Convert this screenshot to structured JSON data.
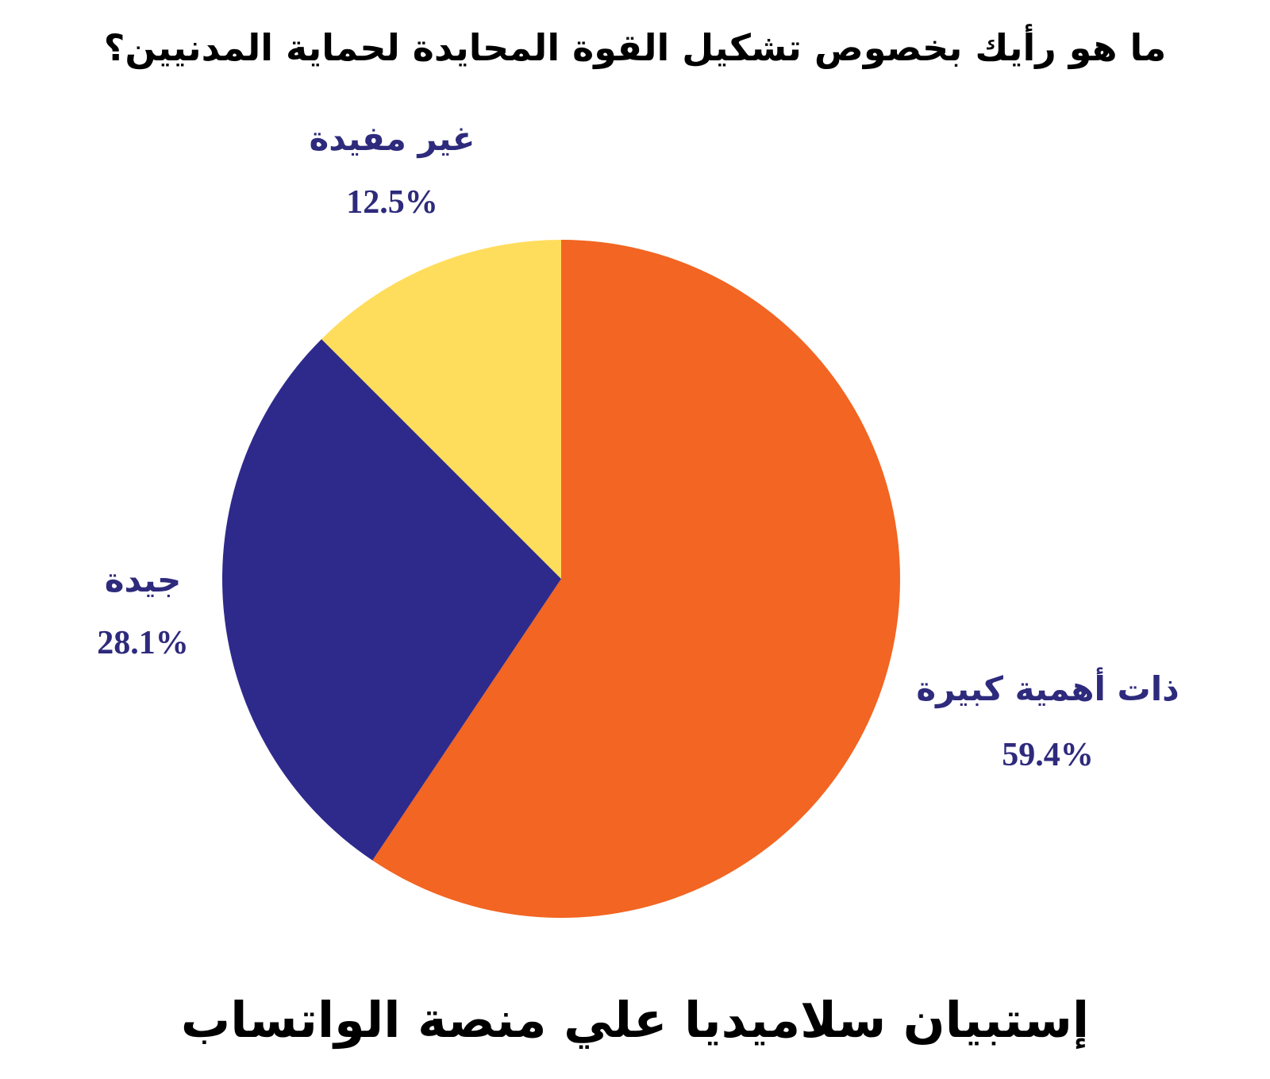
{
  "chart_data": {
    "type": "pie",
    "title": "ما هو رأيك بخصوص تشكيل القوة المحايدة لحماية المدنيين؟",
    "subtitle": "إستبيان سلاميديا علي منصة الواتساب",
    "slices": [
      {
        "label": "ذات أهمية كبيرة",
        "value": 59.4,
        "value_text": "59.4%",
        "color": "#F26522"
      },
      {
        "label": "جيدة",
        "value": 28.1,
        "value_text": "28.1%",
        "color": "#2E2A8C"
      },
      {
        "label": "غير مفيدة",
        "value": 12.5,
        "value_text": "12.5%",
        "color": "#FFDD5C"
      }
    ],
    "start_angle": "12 o'clock",
    "direction": "clockwise",
    "label_color": "#2E2A7C",
    "legend": "none"
  }
}
